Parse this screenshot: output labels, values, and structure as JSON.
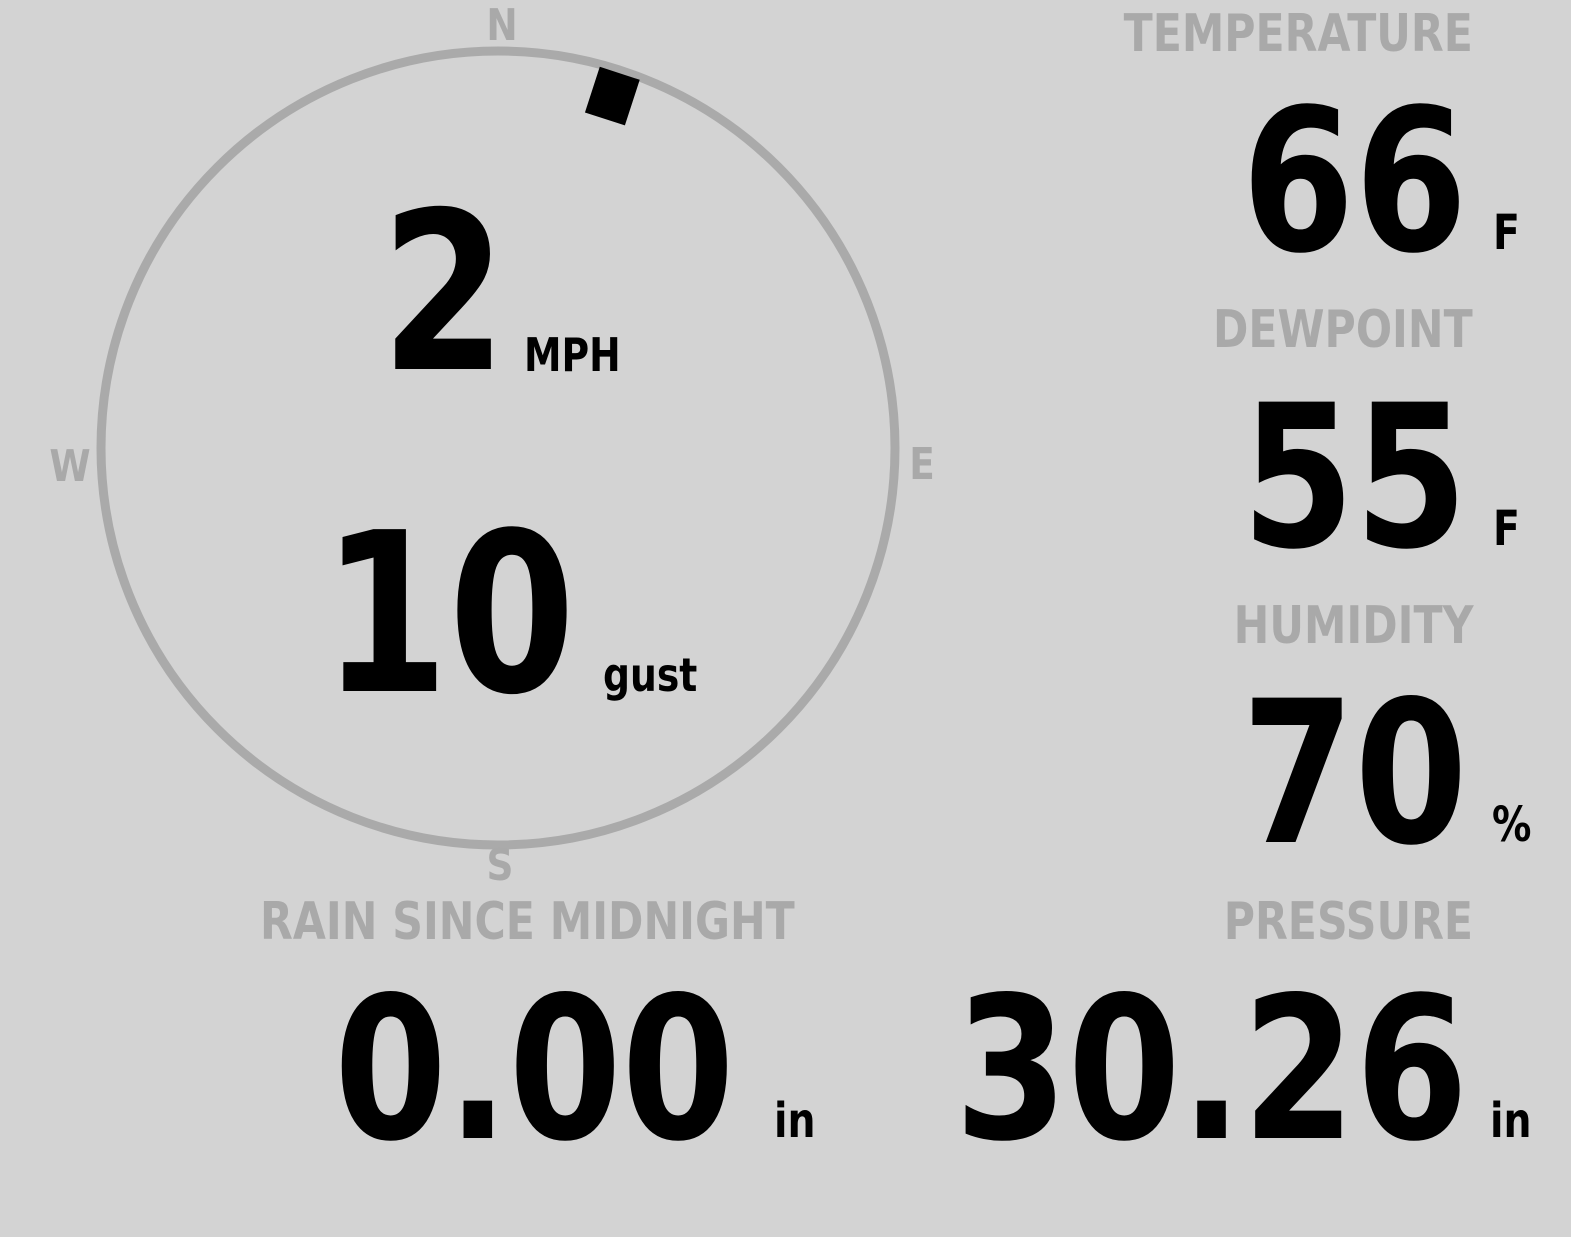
{
  "colors": {
    "background": "#d3d3d3",
    "label": "#a9a9a9",
    "value": "#000000",
    "compass_ring": "#aaaaaa"
  },
  "wind": {
    "compass": {
      "north": "N",
      "south": "S",
      "east": "E",
      "west": "W"
    },
    "direction_deg": 18,
    "speed": "2",
    "speed_unit": "MPH",
    "gust": "10",
    "gust_label": "gust"
  },
  "temperature": {
    "label": "TEMPERATURE",
    "value": "66",
    "unit": "F"
  },
  "dewpoint": {
    "label": "DEWPOINT",
    "value": "55",
    "unit": "F"
  },
  "humidity": {
    "label": "HUMIDITY",
    "value": "70",
    "unit": "%"
  },
  "pressure": {
    "label": "PRESSURE",
    "value": "30.26",
    "unit": "in"
  },
  "rain": {
    "label": "RAIN SINCE MIDNIGHT",
    "value": "0.00",
    "unit": "in"
  }
}
